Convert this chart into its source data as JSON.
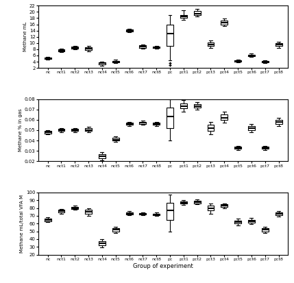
{
  "groups": [
    "nc",
    "nct1",
    "nct2",
    "nct3",
    "nct4",
    "nct5",
    "nct6",
    "nct7",
    "nct8",
    "pc",
    "pct1",
    "pct2",
    "pct3",
    "pct4",
    "pct5",
    "pct6",
    "pct7",
    "pct8"
  ],
  "panel1": {
    "ylabel": "Methane mL",
    "ylim": [
      2,
      22
    ],
    "yticks": [
      2,
      4,
      6,
      8,
      10,
      12,
      14,
      16,
      18,
      20,
      22
    ],
    "boxes": [
      {
        "med": 5.0,
        "q1": 4.8,
        "q3": 5.3,
        "whislo": 4.6,
        "whishi": 5.5,
        "fliers": []
      },
      {
        "med": 7.5,
        "q1": 7.2,
        "q3": 7.9,
        "whislo": 7.0,
        "whishi": 8.1,
        "fliers": []
      },
      {
        "med": 8.5,
        "q1": 8.2,
        "q3": 8.9,
        "whislo": 7.9,
        "whishi": 9.1,
        "fliers": []
      },
      {
        "med": 8.2,
        "q1": 7.8,
        "q3": 8.7,
        "whislo": 7.4,
        "whishi": 9.0,
        "fliers": []
      },
      {
        "med": 3.5,
        "q1": 3.1,
        "q3": 3.8,
        "whislo": 2.7,
        "whishi": 4.1,
        "fliers": []
      },
      {
        "med": 4.0,
        "q1": 3.8,
        "q3": 4.3,
        "whislo": 3.5,
        "whishi": 4.6,
        "fliers": []
      },
      {
        "med": 14.0,
        "q1": 13.8,
        "q3": 14.3,
        "whislo": 13.5,
        "whishi": 14.6,
        "fliers": []
      },
      {
        "med": 8.8,
        "q1": 8.5,
        "q3": 9.2,
        "whislo": 8.2,
        "whishi": 9.5,
        "fliers": []
      },
      {
        "med": 8.7,
        "q1": 8.5,
        "q3": 8.9,
        "whislo": 8.2,
        "whishi": 9.1,
        "fliers": []
      },
      {
        "med": 13.0,
        "q1": 9.0,
        "q3": 16.0,
        "whislo": 4.5,
        "whishi": 19.0,
        "fliers": [
          3.5,
          3.0
        ]
      },
      {
        "med": 18.5,
        "q1": 18.0,
        "q3": 19.0,
        "whislo": 17.5,
        "whishi": 20.5,
        "fliers": []
      },
      {
        "med": 19.5,
        "q1": 19.0,
        "q3": 20.2,
        "whislo": 18.5,
        "whishi": 21.0,
        "fliers": []
      },
      {
        "med": 9.5,
        "q1": 9.0,
        "q3": 10.2,
        "whislo": 8.5,
        "whishi": 10.8,
        "fliers": []
      },
      {
        "med": 16.5,
        "q1": 16.0,
        "q3": 17.2,
        "whislo": 15.5,
        "whishi": 17.8,
        "fliers": []
      },
      {
        "med": 4.2,
        "q1": 4.0,
        "q3": 4.5,
        "whislo": 3.8,
        "whishi": 4.7,
        "fliers": []
      },
      {
        "med": 6.0,
        "q1": 5.8,
        "q3": 6.3,
        "whislo": 5.5,
        "whishi": 6.6,
        "fliers": []
      },
      {
        "med": 4.0,
        "q1": 3.8,
        "q3": 4.2,
        "whislo": 3.6,
        "whishi": 4.5,
        "fliers": []
      },
      {
        "med": 9.5,
        "q1": 9.0,
        "q3": 10.0,
        "whislo": 8.5,
        "whishi": 10.5,
        "fliers": []
      }
    ]
  },
  "panel2": {
    "ylabel": "Methane % in gas",
    "ylim": [
      0.02,
      0.08
    ],
    "yticks": [
      0.02,
      0.03,
      0.04,
      0.05,
      0.06,
      0.07,
      0.08
    ],
    "boxes": [
      {
        "med": 0.048,
        "q1": 0.047,
        "q3": 0.049,
        "whislo": 0.046,
        "whishi": 0.05,
        "fliers": []
      },
      {
        "med": 0.05,
        "q1": 0.049,
        "q3": 0.051,
        "whislo": 0.048,
        "whishi": 0.052,
        "fliers": []
      },
      {
        "med": 0.05,
        "q1": 0.049,
        "q3": 0.051,
        "whislo": 0.048,
        "whishi": 0.052,
        "fliers": []
      },
      {
        "med": 0.05,
        "q1": 0.049,
        "q3": 0.052,
        "whislo": 0.048,
        "whishi": 0.053,
        "fliers": []
      },
      {
        "med": 0.025,
        "q1": 0.023,
        "q3": 0.027,
        "whislo": 0.021,
        "whishi": 0.029,
        "fliers": []
      },
      {
        "med": 0.041,
        "q1": 0.04,
        "q3": 0.043,
        "whislo": 0.039,
        "whishi": 0.044,
        "fliers": []
      },
      {
        "med": 0.056,
        "q1": 0.055,
        "q3": 0.057,
        "whislo": 0.054,
        "whishi": 0.058,
        "fliers": []
      },
      {
        "med": 0.057,
        "q1": 0.056,
        "q3": 0.058,
        "whislo": 0.055,
        "whishi": 0.059,
        "fliers": []
      },
      {
        "med": 0.056,
        "q1": 0.055,
        "q3": 0.057,
        "whislo": 0.054,
        "whishi": 0.058,
        "fliers": []
      },
      {
        "med": 0.063,
        "q1": 0.052,
        "q3": 0.072,
        "whislo": 0.04,
        "whishi": 0.08,
        "fliers": []
      },
      {
        "med": 0.073,
        "q1": 0.071,
        "q3": 0.076,
        "whislo": 0.068,
        "whishi": 0.079,
        "fliers": []
      },
      {
        "med": 0.073,
        "q1": 0.072,
        "q3": 0.075,
        "whislo": 0.07,
        "whishi": 0.077,
        "fliers": []
      },
      {
        "med": 0.052,
        "q1": 0.049,
        "q3": 0.055,
        "whislo": 0.046,
        "whishi": 0.058,
        "fliers": []
      },
      {
        "med": 0.062,
        "q1": 0.06,
        "q3": 0.065,
        "whislo": 0.057,
        "whishi": 0.068,
        "fliers": []
      },
      {
        "med": 0.033,
        "q1": 0.032,
        "q3": 0.034,
        "whislo": 0.031,
        "whishi": 0.035,
        "fliers": []
      },
      {
        "med": 0.052,
        "q1": 0.05,
        "q3": 0.054,
        "whislo": 0.048,
        "whishi": 0.056,
        "fliers": []
      },
      {
        "med": 0.033,
        "q1": 0.032,
        "q3": 0.034,
        "whislo": 0.031,
        "whishi": 0.035,
        "fliers": []
      },
      {
        "med": 0.058,
        "q1": 0.056,
        "q3": 0.06,
        "whislo": 0.054,
        "whishi": 0.062,
        "fliers": []
      }
    ]
  },
  "panel3": {
    "ylabel": "Methane mL/total VFA M",
    "xlabel": "Group of experiment",
    "ylim": [
      20,
      100
    ],
    "yticks": [
      20,
      30,
      40,
      50,
      60,
      70,
      80,
      90,
      100
    ],
    "boxes": [
      {
        "med": 65.0,
        "q1": 63.0,
        "q3": 66.5,
        "whislo": 62.0,
        "whishi": 68.0,
        "fliers": []
      },
      {
        "med": 76.0,
        "q1": 74.0,
        "q3": 77.5,
        "whislo": 72.5,
        "whishi": 79.0,
        "fliers": []
      },
      {
        "med": 80.0,
        "q1": 79.0,
        "q3": 81.5,
        "whislo": 77.5,
        "whishi": 83.0,
        "fliers": []
      },
      {
        "med": 75.5,
        "q1": 73.0,
        "q3": 77.5,
        "whislo": 70.0,
        "whishi": 80.0,
        "fliers": []
      },
      {
        "med": 35.0,
        "q1": 32.0,
        "q3": 37.5,
        "whislo": 29.0,
        "whishi": 40.0,
        "fliers": []
      },
      {
        "med": 52.0,
        "q1": 50.0,
        "q3": 54.0,
        "whislo": 48.0,
        "whishi": 56.0,
        "fliers": []
      },
      {
        "med": 73.0,
        "q1": 72.0,
        "q3": 74.5,
        "whislo": 71.0,
        "whishi": 76.0,
        "fliers": []
      },
      {
        "med": 72.5,
        "q1": 71.5,
        "q3": 73.5,
        "whislo": 70.5,
        "whishi": 74.5,
        "fliers": []
      },
      {
        "med": 72.0,
        "q1": 71.0,
        "q3": 73.0,
        "whislo": 70.0,
        "whishi": 74.0,
        "fliers": []
      },
      {
        "med": 77.0,
        "q1": 65.0,
        "q3": 87.0,
        "whislo": 50.0,
        "whishi": 97.0,
        "fliers": []
      },
      {
        "med": 87.0,
        "q1": 85.5,
        "q3": 88.5,
        "whislo": 84.0,
        "whishi": 90.0,
        "fliers": []
      },
      {
        "med": 87.5,
        "q1": 86.0,
        "q3": 89.0,
        "whislo": 84.5,
        "whishi": 91.0,
        "fliers": []
      },
      {
        "med": 80.0,
        "q1": 77.0,
        "q3": 83.0,
        "whislo": 73.0,
        "whishi": 86.0,
        "fliers": []
      },
      {
        "med": 83.0,
        "q1": 81.5,
        "q3": 84.5,
        "whislo": 80.0,
        "whishi": 86.0,
        "fliers": []
      },
      {
        "med": 62.0,
        "q1": 60.0,
        "q3": 64.0,
        "whislo": 58.0,
        "whishi": 66.0,
        "fliers": []
      },
      {
        "med": 63.0,
        "q1": 61.0,
        "q3": 65.0,
        "whislo": 59.0,
        "whishi": 67.0,
        "fliers": []
      },
      {
        "med": 52.0,
        "q1": 50.0,
        "q3": 54.0,
        "whislo": 48.0,
        "whishi": 56.0,
        "fliers": []
      },
      {
        "med": 72.5,
        "q1": 71.0,
        "q3": 74.0,
        "whislo": 69.0,
        "whishi": 76.0,
        "fliers": []
      }
    ]
  }
}
